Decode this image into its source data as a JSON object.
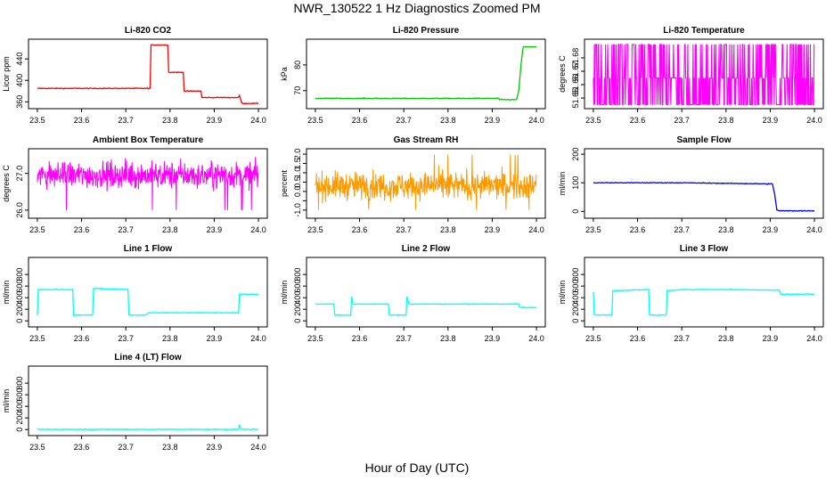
{
  "figure": {
    "title": "NWR_130522  1 Hz Diagnostics Zoomed PM",
    "xlabel": "Hour of Day (UTC)"
  },
  "chart_data": [
    {
      "type": "line",
      "title": "Li-820 CO2",
      "ylabel": "Licor ppm",
      "color": "#ff0000",
      "xlim": [
        23.5,
        24.0
      ],
      "ylim": [
        352,
        472
      ],
      "x_ticks": [
        23.5,
        23.6,
        23.7,
        23.8,
        23.9,
        24.0
      ],
      "x_tick_labels": [
        "23.5",
        "23.6",
        "23.7",
        "23.8",
        "23.9",
        "24.0"
      ],
      "y_ticks": [
        360,
        400,
        440
      ],
      "y_tick_labels": [
        "360",
        "400",
        "440"
      ],
      "series": [
        {
          "x": [
            23.5,
            23.755,
            23.757,
            23.795,
            23.797,
            23.83,
            23.832,
            23.87,
            23.872,
            23.955,
            23.957,
            23.962,
            23.964,
            24.0
          ],
          "y": [
            385,
            385,
            466,
            466,
            415,
            415,
            380,
            380,
            368,
            368,
            372,
            358,
            357,
            357
          ]
        }
      ]
    },
    {
      "type": "line",
      "title": "Li-820 Pressure",
      "ylabel": "kPa",
      "color": "#00c800",
      "xlim": [
        23.5,
        24.0
      ],
      "ylim": [
        64,
        89
      ],
      "x_ticks": [
        23.5,
        23.6,
        23.7,
        23.8,
        23.9,
        24.0
      ],
      "x_tick_labels": [
        "23.5",
        "23.6",
        "23.7",
        "23.8",
        "23.9",
        "24.0"
      ],
      "y_ticks": [
        70,
        80
      ],
      "y_tick_labels": [
        "70",
        "80"
      ],
      "series": [
        {
          "x": [
            23.5,
            23.915,
            23.917,
            23.955,
            23.96,
            23.965,
            23.97,
            24.0
          ],
          "y": [
            67,
            67,
            66.5,
            66.5,
            70,
            80,
            87,
            87
          ]
        }
      ]
    },
    {
      "type": "line",
      "title": "Li-820 Temperature",
      "ylabel": "degrees C",
      "color": "#ff00ff",
      "xlim": [
        23.5,
        24.0
      ],
      "ylim": [
        51.644,
        51.692
      ],
      "x_ticks": [
        23.5,
        23.6,
        23.7,
        23.8,
        23.9,
        24.0
      ],
      "x_tick_labels": [
        "23.5",
        "23.6",
        "23.7",
        "23.8",
        "23.9",
        "24.0"
      ],
      "y_ticks": [
        51.65,
        51.66,
        51.67,
        51.68
      ],
      "y_tick_labels": [
        "51.65",
        "51.66",
        "51.67",
        "51.68"
      ],
      "series": [
        {
          "levels": [
            51.645,
            51.665,
            51.69
          ]
        }
      ]
    },
    {
      "type": "line",
      "title": "Ambient Box Temperature",
      "ylabel": "degrees C",
      "color": "#ff00ff",
      "xlim": [
        23.5,
        24.0
      ],
      "ylim": [
        25.85,
        27.6
      ],
      "x_ticks": [
        23.5,
        23.6,
        23.7,
        23.8,
        23.9,
        24.0
      ],
      "x_tick_labels": [
        "23.5",
        "23.6",
        "23.7",
        "23.8",
        "23.9",
        "24.0"
      ],
      "y_ticks": [
        26.0,
        27.0
      ],
      "y_tick_labels": [
        "26.0",
        "27.0"
      ],
      "series": [
        {
          "mean": 26.95,
          "range": [
            26.0,
            27.45
          ]
        }
      ]
    },
    {
      "type": "line",
      "title": "Gas Stream RH",
      "ylabel": "percent",
      "color": "#ff9900",
      "xlim": [
        23.5,
        24.0
      ],
      "ylim": [
        -1.3,
        2.15
      ],
      "x_ticks": [
        23.5,
        23.6,
        23.7,
        23.8,
        23.9,
        24.0
      ],
      "x_tick_labels": [
        "23.5",
        "23.6",
        "23.7",
        "23.8",
        "23.9",
        "24.0"
      ],
      "y_ticks": [
        -1.0,
        -0.5,
        0.0,
        0.5,
        1.0,
        1.5,
        2.0
      ],
      "y_tick_labels": [
        "-1.0",
        "",
        "0.0",
        "0.5",
        "1.0",
        "1.5",
        "2.0"
      ],
      "series": [
        {
          "mean": 0.3,
          "range": [
            -1.0,
            2.0
          ]
        }
      ]
    },
    {
      "type": "line",
      "title": "Sample Flow",
      "ylabel": "ml/min",
      "color": "#0000ff",
      "xlim": [
        23.5,
        24.0
      ],
      "ylim": [
        -15,
        210
      ],
      "x_ticks": [
        23.5,
        23.6,
        23.7,
        23.8,
        23.9,
        24.0
      ],
      "x_tick_labels": [
        "23.5",
        "23.6",
        "23.7",
        "23.8",
        "23.9",
        "24.0"
      ],
      "y_ticks": [
        0,
        100,
        200
      ],
      "y_tick_labels": [
        "0",
        "100",
        "200"
      ],
      "series": [
        {
          "x": [
            23.5,
            23.7,
            23.8,
            23.905,
            23.91,
            23.915,
            23.92,
            24.0
          ],
          "y": [
            100,
            100,
            98,
            96,
            60,
            5,
            2,
            2
          ]
        }
      ]
    },
    {
      "type": "line",
      "title": "Line 1 Flow",
      "ylabel": "ml/min",
      "color": "#00ffff",
      "xlim": [
        23.5,
        24.0
      ],
      "ylim": [
        -60,
        1050
      ],
      "x_ticks": [
        23.5,
        23.6,
        23.7,
        23.8,
        23.9,
        24.0
      ],
      "x_tick_labels": [
        "23.5",
        "23.6",
        "23.7",
        "23.8",
        "23.9",
        "24.0"
      ],
      "y_ticks": [
        0,
        200,
        400,
        600,
        800
      ],
      "y_tick_labels": [
        "0",
        "200",
        "400",
        "600",
        "800"
      ],
      "series": [
        {
          "x": [
            23.5,
            23.502,
            23.58,
            23.582,
            23.625,
            23.627,
            23.705,
            23.707,
            23.745,
            23.75,
            23.955,
            23.957,
            24.0
          ],
          "y": [
            100,
            540,
            540,
            100,
            100,
            560,
            540,
            100,
            100,
            140,
            140,
            460,
            460
          ]
        }
      ]
    },
    {
      "type": "line",
      "title": "Line 2 Flow",
      "ylabel": "ml/min",
      "color": "#00ffff",
      "xlim": [
        23.5,
        24.0
      ],
      "ylim": [
        -60,
        1050
      ],
      "x_ticks": [
        23.5,
        23.6,
        23.7,
        23.8,
        23.9,
        24.0
      ],
      "x_tick_labels": [
        "23.5",
        "23.6",
        "23.7",
        "23.8",
        "23.9",
        "24.0"
      ],
      "y_ticks": [
        0,
        200,
        400,
        600,
        800
      ],
      "y_tick_labels": [
        "0",
        "200",
        "400",
        "600",
        "800"
      ],
      "series": [
        {
          "x": [
            23.5,
            23.542,
            23.544,
            23.58,
            23.582,
            23.585,
            23.665,
            23.667,
            23.705,
            23.707,
            23.712,
            23.96,
            23.962,
            24.0
          ],
          "y": [
            290,
            290,
            100,
            100,
            420,
            290,
            290,
            100,
            100,
            420,
            290,
            290,
            230,
            230
          ]
        }
      ]
    },
    {
      "type": "line",
      "title": "Line 3 Flow",
      "ylabel": "ml/min",
      "color": "#00ffff",
      "xlim": [
        23.5,
        24.0
      ],
      "ylim": [
        -60,
        1050
      ],
      "x_ticks": [
        23.5,
        23.6,
        23.7,
        23.8,
        23.9,
        24.0
      ],
      "x_tick_labels": [
        "23.5",
        "23.6",
        "23.7",
        "23.8",
        "23.9",
        "24.0"
      ],
      "y_ticks": [
        0,
        200,
        400,
        600,
        800
      ],
      "y_tick_labels": [
        "0",
        "200",
        "400",
        "600",
        "800"
      ],
      "series": [
        {
          "x": [
            23.5,
            23.502,
            23.542,
            23.544,
            23.625,
            23.627,
            23.665,
            23.667,
            23.7,
            23.8,
            23.92,
            23.925,
            24.0
          ],
          "y": [
            500,
            100,
            100,
            520,
            540,
            100,
            100,
            520,
            540,
            540,
            530,
            460,
            460
          ]
        }
      ]
    },
    {
      "type": "line",
      "title": "Line 4 (LT) Flow",
      "ylabel": "ml/min",
      "color": "#00ffff",
      "xlim": [
        23.5,
        24.0
      ],
      "ylim": [
        -60,
        1050
      ],
      "x_ticks": [
        23.5,
        23.6,
        23.7,
        23.8,
        23.9,
        24.0
      ],
      "x_tick_labels": [
        "23.5",
        "23.6",
        "23.7",
        "23.8",
        "23.9",
        "24.0"
      ],
      "y_ticks": [
        0,
        200,
        400,
        600,
        800
      ],
      "y_tick_labels": [
        "0",
        "200",
        "400",
        "600",
        "800"
      ],
      "series": [
        {
          "x": [
            23.5,
            23.955,
            23.957,
            23.959,
            23.961,
            24.0
          ],
          "y": [
            3,
            3,
            80,
            20,
            3,
            3
          ]
        }
      ]
    }
  ]
}
